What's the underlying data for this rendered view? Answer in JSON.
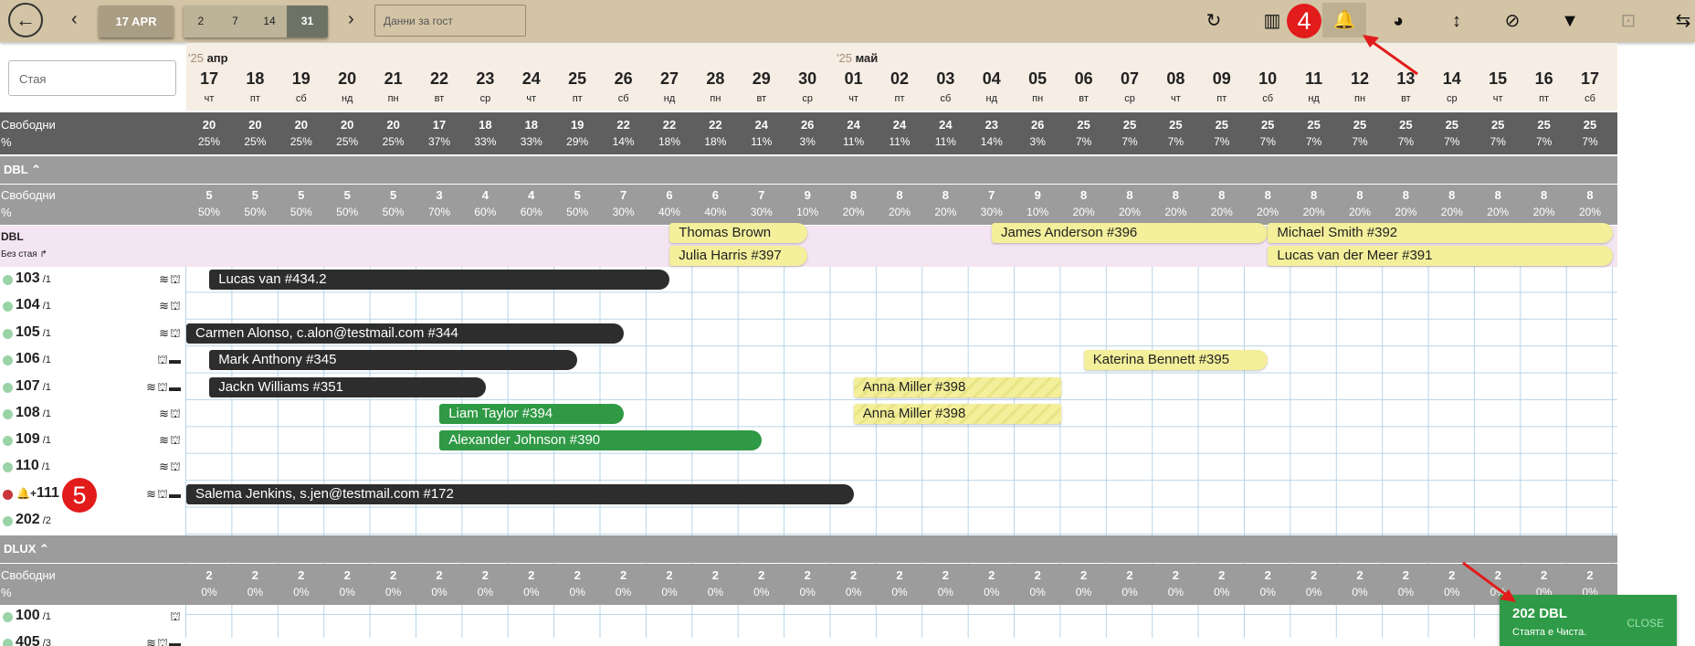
{
  "toolbar": {
    "back": "←",
    "prev": "‹",
    "next": "›",
    "date": "17 APR",
    "views": [
      "2",
      "7",
      "14",
      "31"
    ],
    "active_view": "31",
    "guest_placeholder": "Данни за гост",
    "annotation_badge": "4",
    "icons": [
      "refresh-icon",
      "columns-icon",
      "notification-add-icon",
      "palette-icon",
      "vertical-resize-icon",
      "filter-clear-icon",
      "filter-icon",
      "focus-icon",
      "swap-icon"
    ]
  },
  "search": {
    "placeholder": "Стая"
  },
  "months": [
    {
      "year": "'25",
      "name": "апр"
    },
    {
      "year": "'25",
      "name": "май"
    }
  ],
  "days": [
    [
      "17",
      "чт"
    ],
    [
      "18",
      "пт"
    ],
    [
      "19",
      "сб"
    ],
    [
      "20",
      "нд"
    ],
    [
      "21",
      "пн"
    ],
    [
      "22",
      "вт"
    ],
    [
      "23",
      "ср"
    ],
    [
      "24",
      "чт"
    ],
    [
      "25",
      "пт"
    ],
    [
      "26",
      "сб"
    ],
    [
      "27",
      "нд"
    ],
    [
      "28",
      "пн"
    ],
    [
      "29",
      "вт"
    ],
    [
      "30",
      "ср"
    ],
    [
      "01",
      "чт"
    ],
    [
      "02",
      "пт"
    ],
    [
      "03",
      "сб"
    ],
    [
      "04",
      "нд"
    ],
    [
      "05",
      "пн"
    ],
    [
      "06",
      "вт"
    ],
    [
      "07",
      "ср"
    ],
    [
      "08",
      "чт"
    ],
    [
      "09",
      "пт"
    ],
    [
      "10",
      "сб"
    ],
    [
      "11",
      "нд"
    ],
    [
      "12",
      "пн"
    ],
    [
      "13",
      "вт"
    ],
    [
      "14",
      "ср"
    ],
    [
      "15",
      "чт"
    ],
    [
      "16",
      "пт"
    ],
    [
      "17",
      "сб"
    ]
  ],
  "labels": {
    "free": "Свободни",
    "pct": "%"
  },
  "total": {
    "counts": [
      "20",
      "20",
      "20",
      "20",
      "20",
      "17",
      "18",
      "18",
      "19",
      "22",
      "22",
      "22",
      "24",
      "26",
      "24",
      "24",
      "24",
      "23",
      "26",
      "25",
      "25",
      "25",
      "25",
      "25",
      "25",
      "25",
      "25",
      "25",
      "25",
      "25",
      "25"
    ],
    "pcts": [
      "25%",
      "25%",
      "25%",
      "25%",
      "25%",
      "37%",
      "33%",
      "33%",
      "29%",
      "14%",
      "18%",
      "18%",
      "11%",
      "3%",
      "11%",
      "11%",
      "11%",
      "14%",
      "3%",
      "7%",
      "7%",
      "7%",
      "7%",
      "7%",
      "7%",
      "7%",
      "7%",
      "7%",
      "7%",
      "7%",
      "7%"
    ]
  },
  "dbl": {
    "title": "DBL",
    "counts": [
      "5",
      "5",
      "5",
      "5",
      "5",
      "3",
      "4",
      "4",
      "5",
      "7",
      "6",
      "6",
      "7",
      "9",
      "8",
      "8",
      "8",
      "7",
      "9",
      "8",
      "8",
      "8",
      "8",
      "8",
      "8",
      "8",
      "8",
      "8",
      "8",
      "8",
      "8"
    ],
    "pcts": [
      "50%",
      "50%",
      "50%",
      "50%",
      "50%",
      "70%",
      "60%",
      "60%",
      "50%",
      "30%",
      "40%",
      "40%",
      "30%",
      "10%",
      "20%",
      "20%",
      "20%",
      "30%",
      "10%",
      "20%",
      "20%",
      "20%",
      "20%",
      "20%",
      "20%",
      "20%",
      "20%",
      "20%",
      "20%",
      "20%",
      "20%"
    ],
    "unassigned_title": "DBL",
    "unassigned_sub": "Без стая ↱"
  },
  "dlux": {
    "title": "DLUX",
    "counts": [
      "2",
      "2",
      "2",
      "2",
      "2",
      "2",
      "2",
      "2",
      "2",
      "2",
      "2",
      "2",
      "2",
      "2",
      "2",
      "2",
      "2",
      "2",
      "2",
      "2",
      "2",
      "2",
      "2",
      "2",
      "2",
      "2",
      "2",
      "2",
      "2",
      "2",
      "2"
    ],
    "pcts": [
      "0%",
      "0%",
      "0%",
      "0%",
      "0%",
      "0%",
      "0%",
      "0%",
      "0%",
      "0%",
      "0%",
      "0%",
      "0%",
      "0%",
      "0%",
      "0%",
      "0%",
      "0%",
      "0%",
      "0%",
      "0%",
      "0%",
      "0%",
      "0%",
      "0%",
      "0%",
      "0%",
      "0%",
      "0%",
      "0%",
      "0%"
    ]
  },
  "rooms": [
    {
      "num": "103",
      "cap": "/1",
      "icons": "≋⛫",
      "status": "#9ad3a6"
    },
    {
      "num": "104",
      "cap": "/1",
      "icons": "≋⛫",
      "status": "#9ad3a6"
    },
    {
      "num": "105",
      "cap": "/1",
      "icons": "≋⛫",
      "status": "#9ad3a6"
    },
    {
      "num": "106",
      "cap": "/1",
      "icons": "⛫▬",
      "status": "#9ad3a6"
    },
    {
      "num": "107",
      "cap": "/1",
      "icons": "≋⛫▬",
      "status": "#9ad3a6"
    },
    {
      "num": "108",
      "cap": "/1",
      "icons": "≋⛫",
      "status": "#9ad3a6"
    },
    {
      "num": "109",
      "cap": "/1",
      "icons": "≋⛫",
      "status": "#9ad3a6"
    },
    {
      "num": "110",
      "cap": "/1",
      "icons": "≋⛫",
      "status": "#9ad3a6"
    },
    {
      "num": "111",
      "cap": "",
      "icons": "≋⛫▬",
      "status": "#c8353c",
      "prefix": "🔔+",
      "badge": "5"
    },
    {
      "num": "202",
      "cap": "/2",
      "icons": "",
      "status": "#9ad3a6"
    },
    {
      "num": "100",
      "cap": "/1",
      "icons": "⛫",
      "status": "#9ad3a6"
    },
    {
      "num": "405",
      "cap": "/3",
      "icons": "≋⛫▬",
      "status": "#9ad3a6"
    }
  ],
  "bookings": [
    {
      "label": "Thomas Brown",
      "row": "u1",
      "s": 10.5,
      "e": 13.5,
      "c": "yel"
    },
    {
      "label": "Julia Harris #397",
      "row": "u2",
      "s": 10.5,
      "e": 13.5,
      "c": "yel"
    },
    {
      "label": "James Anderson #396",
      "row": "u1",
      "s": 17.5,
      "e": 23.5,
      "c": "yel"
    },
    {
      "label": "Michael Smith #392",
      "row": "u1",
      "s": 23.5,
      "e": 31,
      "c": "yel"
    },
    {
      "label": "Lucas van der Meer #391",
      "row": "u2",
      "s": 23.5,
      "e": 31,
      "c": "yel"
    },
    {
      "label": "Lucas van #434.2",
      "row": 0,
      "s": 0.5,
      "e": 10.5,
      "c": "blk"
    },
    {
      "label": "Carmen Alonso, c.alon@testmail.com #344",
      "row": 2,
      "s": 0,
      "e": 9.5,
      "c": "blk"
    },
    {
      "label": "Mark Anthony #345",
      "row": 3,
      "s": 0.5,
      "e": 8.5,
      "c": "blk"
    },
    {
      "label": "Katerina Bennett #395",
      "row": 3,
      "s": 19.5,
      "e": 23.5,
      "c": "yel"
    },
    {
      "label": "Jackn Williams #351",
      "row": 4,
      "s": 0.5,
      "e": 6.5,
      "c": "blk"
    },
    {
      "label": "Anna Miller #398",
      "row": 4,
      "s": 14.5,
      "e": 19,
      "c": "str"
    },
    {
      "label": "Liam Taylor #394",
      "row": 5,
      "s": 5.5,
      "e": 9.5,
      "c": "grn"
    },
    {
      "label": "Anna Miller #398",
      "row": 5,
      "s": 14.5,
      "e": 19,
      "c": "str"
    },
    {
      "label": "Alexander Johnson #390",
      "row": 6,
      "s": 5.5,
      "e": 12.5,
      "c": "grn"
    },
    {
      "label": "Salema Jenkins, s.jen@testmail.com #172",
      "row": 8,
      "s": 0,
      "e": 14.5,
      "c": "blk"
    }
  ],
  "toast": {
    "title": "202 DBL",
    "message": "Стаята е Чиста.",
    "close": "CLOSE"
  },
  "colors": {
    "toolbar": "#d3c4a5",
    "annotation": "#e21b1b",
    "toast": "#2f9b48"
  }
}
